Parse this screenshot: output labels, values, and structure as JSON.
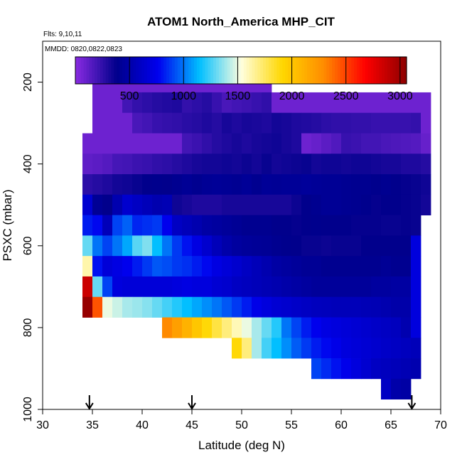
{
  "chart_data": {
    "type": "heatmap",
    "title": "ATOM1 North_America MHP_CIT",
    "subtitle_flights": "Flts: 9,10,11",
    "subtitle_dates": "MMDD: 0820,0822,0823",
    "xlabel": "Latitude (deg N)",
    "ylabel": "PSXC (mbar)",
    "xlim": [
      30,
      70
    ],
    "ylim": [
      1000,
      100
    ],
    "x_ticks": [
      30,
      35,
      40,
      45,
      50,
      55,
      60,
      65,
      70
    ],
    "x_tick_labels": [
      "30",
      "35",
      "40",
      "45",
      "50",
      "55",
      "60",
      "65",
      "70"
    ],
    "y_ticks": [
      200,
      400,
      600,
      800,
      1000
    ],
    "y_tick_labels": [
      "200",
      "400",
      "600",
      "800",
      "1000"
    ],
    "colorbar": {
      "range": [
        0,
        3060
      ],
      "ticks": [
        500,
        1000,
        1500,
        2000,
        2500,
        3000
      ],
      "tick_labels": [
        "500",
        "1000",
        "1500",
        "2000",
        "2500",
        "3000"
      ],
      "colors": [
        "#8a2be2",
        "#00008b",
        "#0000ee",
        "#00bfff",
        "#ffffe0",
        "#ffd700",
        "#ff8c00",
        "#ff0000",
        "#8b0000"
      ]
    },
    "arrow_latitudes": [
      34.7,
      45,
      67.1
    ],
    "cell_lat_width": 1,
    "cell_p_height": 50,
    "rows": [
      {
        "p": 200,
        "x0": 35,
        "values": [
          80,
          80,
          80,
          80,
          80,
          80,
          80,
          80,
          80,
          80,
          80,
          80,
          80,
          80,
          80,
          80,
          80,
          80
        ]
      },
      {
        "p": 250,
        "x0": 35,
        "values": [
          80,
          80,
          80,
          200,
          240,
          260,
          280,
          290,
          300,
          240,
          260,
          280,
          230,
          180,
          200,
          210,
          230,
          250,
          80,
          80,
          80,
          80,
          80,
          80,
          80,
          80,
          80,
          80,
          80,
          80,
          80,
          80,
          80,
          80
        ]
      },
      {
        "p": 300,
        "x0": 35,
        "values": [
          80,
          80,
          80,
          80,
          180,
          200,
          230,
          240,
          250,
          270,
          280,
          300,
          280,
          320,
          300,
          320,
          310,
          300,
          330,
          320,
          300,
          290,
          280,
          260,
          250,
          250,
          240,
          240,
          230,
          230,
          230,
          230,
          240,
          80
        ]
      },
      {
        "p": 350,
        "x0": 34,
        "values": [
          80,
          80,
          80,
          80,
          80,
          80,
          80,
          80,
          80,
          80,
          200,
          220,
          250,
          280,
          300,
          320,
          300,
          320,
          330,
          340,
          320,
          300,
          80,
          100,
          130,
          160,
          230,
          220,
          200,
          200,
          180,
          170,
          160,
          150,
          100
        ]
      },
      {
        "p": 400,
        "x0": 34,
        "values": [
          120,
          130,
          150,
          190,
          200,
          220,
          230,
          250,
          260,
          280,
          300,
          320,
          330,
          330,
          340,
          330,
          350,
          330,
          360,
          330,
          340,
          350,
          360,
          330,
          340,
          340,
          330,
          340,
          340,
          330,
          320,
          320,
          300,
          300,
          280
        ]
      },
      {
        "p": 450,
        "x0": 34,
        "values": [
          260,
          280,
          300,
          330,
          340,
          360,
          380,
          390,
          380,
          400,
          420,
          400,
          420,
          430,
          420,
          410,
          430,
          400,
          430,
          420,
          430,
          430,
          440,
          430,
          420,
          420,
          410,
          400,
          400,
          390,
          400,
          380,
          370,
          360,
          340
        ]
      },
      {
        "p": 500,
        "x0": 34,
        "values": [
          650,
          420,
          380,
          520,
          640,
          600,
          560,
          520,
          540,
          340,
          320,
          300,
          300,
          300,
          320,
          320,
          320,
          320,
          320,
          320,
          320,
          350,
          380,
          400,
          420,
          420,
          410,
          400,
          390,
          370,
          380,
          380,
          370,
          360,
          330
        ]
      },
      {
        "p": 550,
        "x0": 34,
        "values": [
          820,
          780,
          560,
          900,
          960,
          840,
          860,
          880,
          760,
          600,
          560,
          520,
          480,
          460,
          440,
          420,
          400,
          400,
          400,
          380,
          380,
          370,
          380,
          390,
          380,
          380,
          380,
          370,
          370,
          370,
          360,
          360,
          370,
          360
        ]
      },
      {
        "p": 600,
        "x0": 34,
        "values": [
          1300,
          1000,
          900,
          1000,
          1100,
          1280,
          1340,
          1150,
          1000,
          880,
          800,
          720,
          640,
          560,
          500,
          460,
          440,
          430,
          420,
          400,
          390,
          380,
          360,
          360,
          350,
          360,
          360,
          360,
          380,
          380,
          380,
          380,
          380,
          700
        ]
      },
      {
        "p": 650,
        "x0": 34,
        "values": [
          1620,
          800,
          680,
          720,
          760,
          820,
          880,
          940,
          920,
          880,
          860,
          820,
          780,
          720,
          680,
          640,
          600,
          560,
          520,
          480,
          460,
          440,
          420,
          420,
          400,
          400,
          400,
          400,
          400,
          400,
          420,
          400,
          400,
          700
        ]
      },
      {
        "p": 700,
        "x0": 34,
        "values": [
          2850,
          1300,
          900,
          700,
          680,
          680,
          680,
          680,
          680,
          700,
          720,
          700,
          700,
          660,
          640,
          600,
          580,
          560,
          540,
          520,
          500,
          480,
          460,
          440,
          440,
          440,
          440,
          440,
          440,
          460,
          460,
          470,
          470,
          700
        ]
      },
      {
        "p": 750,
        "x0": 34,
        "values": [
          3020,
          2450,
          1500,
          1450,
          1400,
          1380,
          1350,
          1300,
          1250,
          1200,
          1150,
          1100,
          1050,
          1000,
          940,
          880,
          820,
          740,
          700,
          660,
          640,
          620,
          600,
          580,
          570,
          560,
          560,
          560,
          550,
          540,
          520,
          500,
          500,
          700
        ]
      },
      {
        "p": 800,
        "x0": 42,
        "values": [
          2300,
          2200,
          2100,
          2000,
          1900,
          1800,
          1700,
          1600,
          1500,
          1400,
          1300,
          1200,
          1000,
          900,
          820,
          760,
          720,
          700,
          680,
          660,
          640,
          620,
          600,
          580,
          520,
          700
        ]
      },
      {
        "p": 850,
        "x0": 49,
        "values": [
          1900,
          1700,
          1400,
          1250,
          1150,
          1050,
          950,
          880,
          820,
          780,
          740,
          700,
          680,
          660,
          640,
          620,
          600,
          580,
          560
        ]
      },
      {
        "p": 900,
        "x0": 57,
        "values": [
          900,
          850,
          800,
          750,
          700,
          650,
          600,
          580,
          560,
          540,
          520
        ]
      },
      {
        "p": 950,
        "x0": 64,
        "values": [
          600,
          500,
          480
        ]
      }
    ]
  }
}
